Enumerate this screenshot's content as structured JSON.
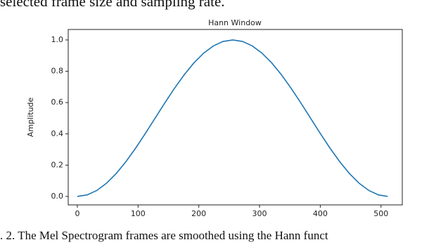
{
  "text_above": "selected frame size and sampling rate.",
  "chart_data": {
    "type": "line",
    "title": "Hann Window",
    "y_label": "Amplitude",
    "x": [
      0,
      16,
      32,
      48,
      64,
      80,
      96,
      112,
      128,
      144,
      160,
      176,
      192,
      208,
      224,
      240,
      256,
      272,
      288,
      304,
      320,
      336,
      352,
      368,
      384,
      400,
      416,
      432,
      448,
      464,
      480,
      496,
      511
    ],
    "series": [
      {
        "color": "#1f77b4",
        "values": [
          0,
          0.0096,
          0.0381,
          0.0843,
          0.1464,
          0.2222,
          0.3087,
          0.4025,
          0.5,
          0.5975,
          0.6913,
          0.7778,
          0.8536,
          0.9157,
          0.9619,
          0.9904,
          1.0,
          0.9904,
          0.9619,
          0.9157,
          0.8536,
          0.7778,
          0.6913,
          0.5975,
          0.5,
          0.4025,
          0.3087,
          0.2222,
          0.1464,
          0.0843,
          0.0381,
          0.0096,
          0
        ]
      }
    ],
    "xlim": [
      -15,
      535
    ],
    "ylim": [
      -0.054,
      1.067
    ],
    "xticks": [
      0,
      100,
      200,
      300,
      400,
      500
    ],
    "yticks": [
      {
        "value": 0,
        "label": "0.0"
      },
      0.2,
      0.4,
      0.6,
      0.8,
      {
        "value": 1,
        "label": "1.0"
      }
    ]
  },
  "caption": ". 2. The Mel Spectrogram frames are smoothed using the Hann funct"
}
